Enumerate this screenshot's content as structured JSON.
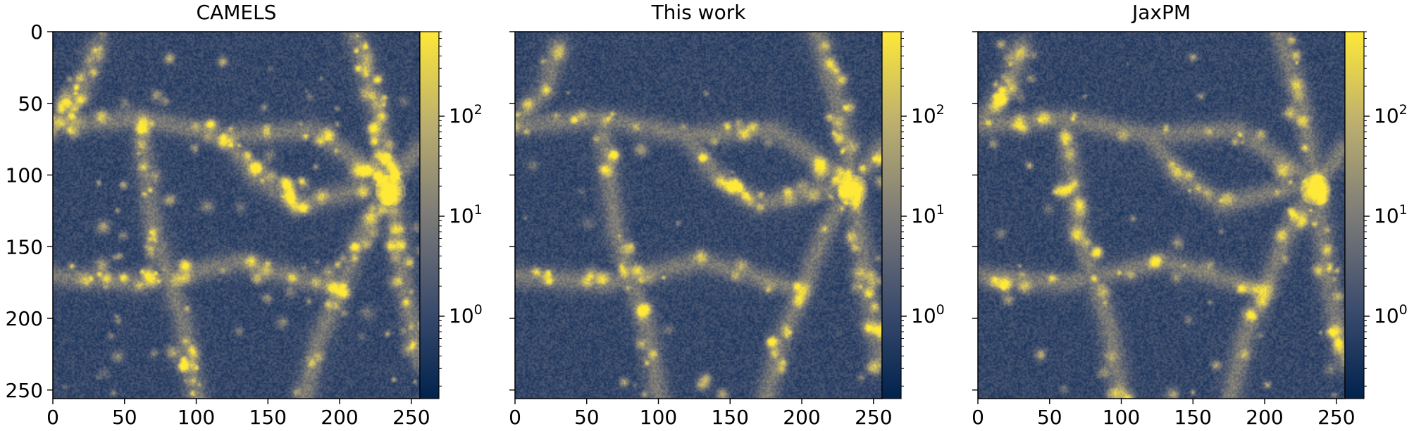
{
  "chart_data": [
    {
      "type": "heatmap",
      "title": "CAMELS",
      "x_ticks": [
        0,
        50,
        100,
        150,
        200,
        250
      ],
      "y_ticks": [
        0,
        50,
        100,
        150,
        200,
        250
      ],
      "xlim": [
        0,
        256
      ],
      "ylim": [
        256,
        0
      ],
      "show_y_tick_labels": true,
      "colorbar": {
        "scale": "log",
        "range": [
          0.15,
          700
        ],
        "ticks": [
          {
            "base": "10",
            "exp": "2",
            "value": 100
          },
          {
            "base": "10",
            "exp": "1",
            "value": 10
          },
          {
            "base": "10",
            "exp": "0",
            "value": 1
          }
        ]
      },
      "colormap": "cividis",
      "seed": 7,
      "halo_density": "high"
    },
    {
      "type": "heatmap",
      "title": "This work",
      "x_ticks": [
        0,
        50,
        100,
        150,
        200,
        250
      ],
      "y_ticks": [
        0,
        50,
        100,
        150,
        200,
        250
      ],
      "xlim": [
        0,
        256
      ],
      "ylim": [
        256,
        0
      ],
      "show_y_tick_labels": false,
      "colorbar": {
        "scale": "log",
        "range": [
          0.15,
          700
        ],
        "ticks": [
          {
            "base": "10",
            "exp": "2",
            "value": 100
          },
          {
            "base": "10",
            "exp": "1",
            "value": 10
          },
          {
            "base": "10",
            "exp": "0",
            "value": 1
          }
        ]
      },
      "colormap": "cividis",
      "seed": 11,
      "halo_density": "medium"
    },
    {
      "type": "heatmap",
      "title": "JaxPM",
      "x_ticks": [
        0,
        50,
        100,
        150,
        200,
        250
      ],
      "y_ticks": [
        0,
        50,
        100,
        150,
        200,
        250
      ],
      "xlim": [
        0,
        256
      ],
      "ylim": [
        256,
        0
      ],
      "show_y_tick_labels": false,
      "colorbar": {
        "scale": "log",
        "range": [
          0.15,
          700
        ],
        "ticks": [
          {
            "base": "10",
            "exp": "2",
            "value": 100
          },
          {
            "base": "10",
            "exp": "1",
            "value": 10
          },
          {
            "base": "10",
            "exp": "0",
            "value": 1
          }
        ]
      },
      "colormap": "cividis",
      "seed": 13,
      "halo_density": "medium"
    }
  ]
}
